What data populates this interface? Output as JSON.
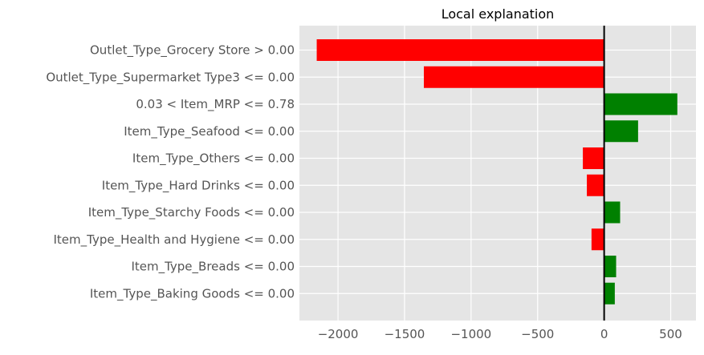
{
  "chart_data": {
    "type": "bar",
    "orientation": "horizontal",
    "title": "Local explanation",
    "xlabel": "",
    "ylabel": "",
    "categories": [
      "Outlet_Type_Grocery Store > 0.00",
      "Outlet_Type_Supermarket Type3 <= 0.00",
      "0.03 < Item_MRP <= 0.78",
      "Item_Type_Seafood <= 0.00",
      "Item_Type_Others <= 0.00",
      "Item_Type_Hard Drinks <= 0.00",
      "Item_Type_Starchy Foods <= 0.00",
      "Item_Type_Health and Hygiene <= 0.00",
      "Item_Type_Breads <= 0.00",
      "Item_Type_Baking Goods <= 0.00"
    ],
    "values": [
      -2160,
      -1355,
      550,
      255,
      -160,
      -130,
      120,
      -95,
      90,
      80
    ],
    "xlim": [
      -2290,
      690
    ],
    "xticks": [
      -2000,
      -1500,
      -1000,
      -500,
      0,
      500
    ],
    "xtick_labels": [
      "−2000",
      "−1500",
      "−1000",
      "−500",
      "0",
      "500"
    ],
    "grid": true,
    "zero_line": true,
    "colors": {
      "negative": "#ff0000",
      "positive": "#008000",
      "background": "#e5e5e5",
      "grid": "#ffffff",
      "zero_line": "#000000"
    }
  }
}
